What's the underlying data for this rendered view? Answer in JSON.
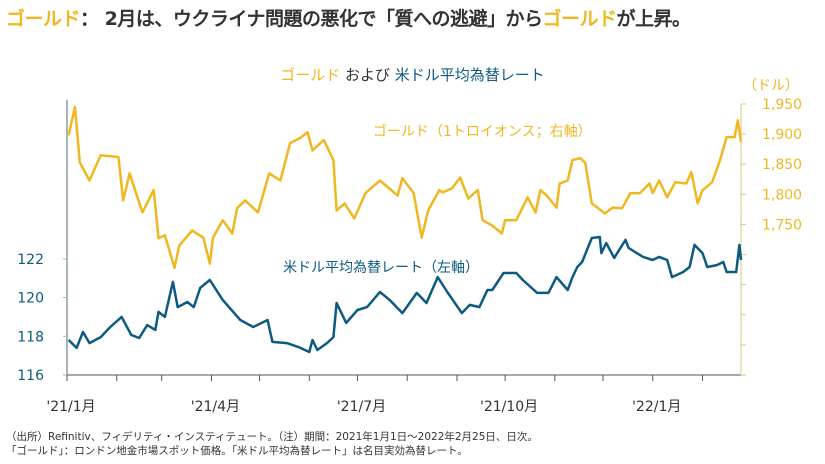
{
  "headline": {
    "part1": "ゴールド",
    "part2": "： 2月は、ウクライナ問題の悪化で「質への逃避」から",
    "part3": "ゴールド",
    "part4": "が上昇。"
  },
  "notes": {
    "line1": "（出所）Refinitiv、フィデリティ・インスティテュート。（注）期間：2021年1月1日～2022年2月25日、日次。",
    "line2": "「ゴールド」：ロンドン地金市場スポット価格。「米ドル平均為替レート」は名目実効為替レート。"
  },
  "colors": {
    "gold": "#F0B820",
    "dollar": "#0E5A80",
    "axis": "#A9B4BA",
    "right_axis": "#D8C68A"
  },
  "chart_data": {
    "type": "line",
    "title_parts": {
      "gold": "ゴールド",
      "and": " および ",
      "dollar": "米ドル平均為替レート"
    },
    "x_unit": "days since 2021-01-01",
    "xlim": [
      0,
      420
    ],
    "x_tick_labels": [
      {
        "day": 0,
        "label": "'21/1月"
      },
      {
        "day": 90,
        "label": "'21/4月"
      },
      {
        "day": 181,
        "label": "'21/7月"
      },
      {
        "day": 273,
        "label": "'21/10月"
      },
      {
        "day": 365,
        "label": "'22/1月"
      }
    ],
    "x_minor_ticks_days": [
      0,
      31,
      59,
      90,
      120,
      151,
      181,
      212,
      243,
      273,
      304,
      334,
      365,
      396
    ],
    "left_axis": {
      "ylim": [
        116,
        130
      ],
      "ticks": [
        116,
        118,
        120,
        122
      ],
      "labels": [
        "116",
        "118",
        "120",
        "122"
      ]
    },
    "right_axis": {
      "unit_label": "（ドル）",
      "ylim": [
        1500,
        1950
      ],
      "ticks": [
        1500,
        1550,
        1600,
        1650,
        1700,
        1750,
        1800,
        1850,
        1900,
        1950
      ],
      "labeled_ticks": [
        1750,
        1800,
        1850,
        1900,
        1950
      ],
      "labels": [
        "1,750",
        "1,800",
        "1,850",
        "1,900",
        "1,950"
      ]
    },
    "series": [
      {
        "name": "ゴールド（1トロイオンス；右軸）",
        "axis": "right",
        "points": [
          [
            1,
            1898
          ],
          [
            5,
            1945
          ],
          [
            8,
            1853
          ],
          [
            14,
            1823
          ],
          [
            21,
            1865
          ],
          [
            32,
            1862
          ],
          [
            35,
            1790
          ],
          [
            39,
            1835
          ],
          [
            47,
            1770
          ],
          [
            54,
            1807
          ],
          [
            57,
            1727
          ],
          [
            61,
            1732
          ],
          [
            67,
            1678
          ],
          [
            70,
            1715
          ],
          [
            78,
            1740
          ],
          [
            85,
            1728
          ],
          [
            89,
            1685
          ],
          [
            91,
            1728
          ],
          [
            97,
            1757
          ],
          [
            103,
            1735
          ],
          [
            106,
            1777
          ],
          [
            111,
            1790
          ],
          [
            119,
            1770
          ],
          [
            126,
            1835
          ],
          [
            133,
            1823
          ],
          [
            139,
            1885
          ],
          [
            145,
            1893
          ],
          [
            150,
            1903
          ],
          [
            153,
            1873
          ],
          [
            160,
            1890
          ],
          [
            166,
            1857
          ],
          [
            168,
            1773
          ],
          [
            173,
            1785
          ],
          [
            179,
            1760
          ],
          [
            186,
            1802
          ],
          [
            195,
            1823
          ],
          [
            206,
            1798
          ],
          [
            209,
            1827
          ],
          [
            216,
            1802
          ],
          [
            221,
            1728
          ],
          [
            225,
            1773
          ],
          [
            232,
            1807
          ],
          [
            234,
            1803
          ],
          [
            240,
            1810
          ],
          [
            245,
            1828
          ],
          [
            250,
            1793
          ],
          [
            256,
            1807
          ],
          [
            259,
            1757
          ],
          [
            265,
            1748
          ],
          [
            271,
            1735
          ],
          [
            273,
            1757
          ],
          [
            280,
            1757
          ],
          [
            287,
            1795
          ],
          [
            292,
            1770
          ],
          [
            295,
            1807
          ],
          [
            299,
            1798
          ],
          [
            305,
            1778
          ],
          [
            307,
            1818
          ],
          [
            312,
            1823
          ],
          [
            315,
            1857
          ],
          [
            320,
            1860
          ],
          [
            323,
            1852
          ],
          [
            327,
            1785
          ],
          [
            333,
            1773
          ],
          [
            335,
            1768
          ],
          [
            340,
            1778
          ],
          [
            346,
            1777
          ],
          [
            351,
            1802
          ],
          [
            357,
            1802
          ],
          [
            363,
            1818
          ],
          [
            365,
            1802
          ],
          [
            369,
            1823
          ],
          [
            374,
            1795
          ],
          [
            379,
            1820
          ],
          [
            386,
            1818
          ],
          [
            389,
            1837
          ],
          [
            393,
            1785
          ],
          [
            396,
            1807
          ],
          [
            402,
            1820
          ],
          [
            407,
            1857
          ],
          [
            411,
            1895
          ],
          [
            416,
            1895
          ],
          [
            418,
            1923
          ],
          [
            420,
            1887
          ]
        ]
      },
      {
        "name": "米ドル平均為替レート（左軸）",
        "axis": "left",
        "points": [
          [
            1,
            117.81
          ],
          [
            6,
            117.4
          ],
          [
            10,
            118.22
          ],
          [
            14,
            117.65
          ],
          [
            21,
            117.96
          ],
          [
            27,
            118.48
          ],
          [
            34,
            119.0
          ],
          [
            40,
            118.07
          ],
          [
            45,
            117.91
          ],
          [
            50,
            118.58
          ],
          [
            55,
            118.33
          ],
          [
            57,
            119.26
          ],
          [
            61,
            119.0
          ],
          [
            66,
            120.81
          ],
          [
            69,
            119.51
          ],
          [
            75,
            119.77
          ],
          [
            79,
            119.51
          ],
          [
            83,
            120.5
          ],
          [
            89,
            120.91
          ],
          [
            97,
            119.88
          ],
          [
            108,
            118.84
          ],
          [
            116,
            118.48
          ],
          [
            125,
            118.84
          ],
          [
            128,
            117.71
          ],
          [
            137,
            117.65
          ],
          [
            144,
            117.45
          ],
          [
            151,
            117.19
          ],
          [
            153,
            117.81
          ],
          [
            156,
            117.29
          ],
          [
            162,
            117.65
          ],
          [
            166,
            117.96
          ],
          [
            168,
            119.72
          ],
          [
            174,
            118.69
          ],
          [
            181,
            119.36
          ],
          [
            187,
            119.51
          ],
          [
            195,
            120.29
          ],
          [
            201,
            119.88
          ],
          [
            209,
            119.2
          ],
          [
            218,
            120.24
          ],
          [
            224,
            119.72
          ],
          [
            231,
            121.06
          ],
          [
            237,
            120.29
          ],
          [
            246,
            119.2
          ],
          [
            251,
            119.62
          ],
          [
            257,
            119.51
          ],
          [
            262,
            120.39
          ],
          [
            265,
            120.39
          ],
          [
            272,
            121.27
          ],
          [
            280,
            121.27
          ],
          [
            284,
            120.91
          ],
          [
            293,
            120.24
          ],
          [
            300,
            120.24
          ],
          [
            305,
            121.06
          ],
          [
            312,
            120.39
          ],
          [
            315,
            121.06
          ],
          [
            318,
            121.58
          ],
          [
            321,
            121.84
          ],
          [
            327,
            123.08
          ],
          [
            332,
            123.13
          ],
          [
            333,
            122.3
          ],
          [
            336,
            122.82
          ],
          [
            341,
            122.05
          ],
          [
            348,
            122.98
          ],
          [
            350,
            122.56
          ],
          [
            355,
            122.3
          ],
          [
            359,
            122.1
          ],
          [
            365,
            121.94
          ],
          [
            369,
            122.1
          ],
          [
            374,
            121.94
          ],
          [
            377,
            121.06
          ],
          [
            384,
            121.32
          ],
          [
            388,
            121.58
          ],
          [
            391,
            122.72
          ],
          [
            396,
            122.3
          ],
          [
            399,
            121.58
          ],
          [
            405,
            121.68
          ],
          [
            409,
            121.84
          ],
          [
            411,
            121.32
          ],
          [
            417,
            121.32
          ],
          [
            419,
            122.72
          ],
          [
            420,
            121.94
          ]
        ]
      }
    ]
  }
}
